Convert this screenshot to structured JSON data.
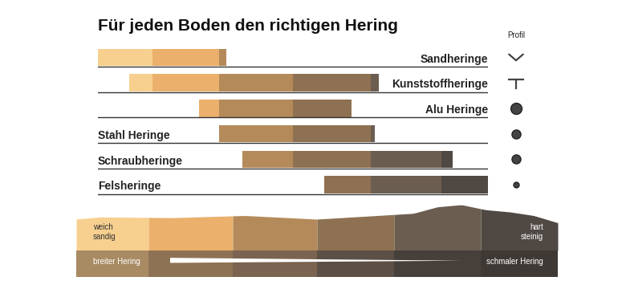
{
  "chart_data": {
    "type": "range",
    "title": "Für jeden Boden den richtigen Hering",
    "orientation": "horizontal",
    "tick_labels": false,
    "xlim": [
      0,
      100
    ],
    "categories": [
      "Sandheringe",
      "Kunststoffheringe",
      "Alu Heringe",
      "Stahl Heringe",
      "Schraubheringe",
      "Felsheringe"
    ],
    "start": [
      0,
      8,
      26,
      31,
      37,
      58
    ],
    "end": [
      33,
      72,
      65,
      71,
      91,
      100
    ],
    "profile_title": "Profil",
    "scale": {
      "left": "weich\nsandig",
      "right": "hart\nsteinig"
    },
    "width": {
      "left": "breiter Hering",
      "right": "schmaler Hering"
    }
  }
}
